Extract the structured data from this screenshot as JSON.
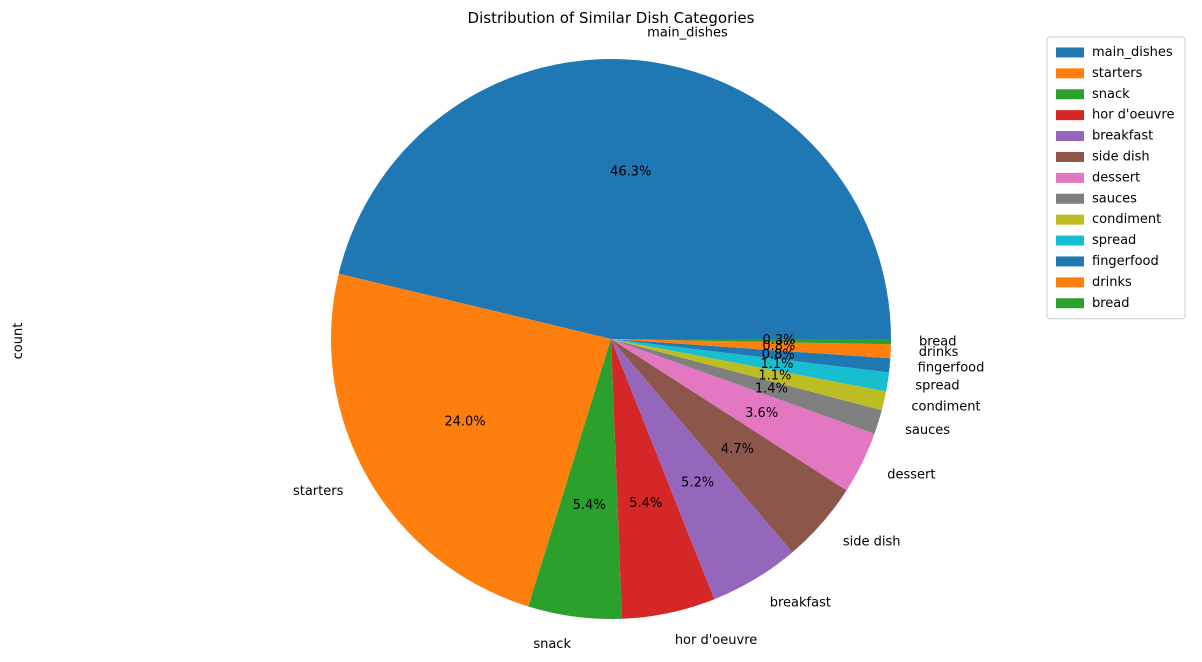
{
  "chart_data": {
    "type": "pie",
    "title": "Distribution of Similar Dish Categories",
    "ylabel": "count",
    "start_angle_deg": 0,
    "direction": "counterclockwise",
    "legend_position": "top-right",
    "slices": [
      {
        "label": "main_dishes",
        "percent": 46.3,
        "percent_label": "46.3%",
        "color": "#1f77b4"
      },
      {
        "label": "starters",
        "percent": 24.0,
        "percent_label": "24.0%",
        "color": "#ff7f0e"
      },
      {
        "label": "snack",
        "percent": 5.4,
        "percent_label": "5.4%",
        "color": "#2ca02c"
      },
      {
        "label": "hor d'oeuvre",
        "percent": 5.4,
        "percent_label": "5.4%",
        "color": "#d62728"
      },
      {
        "label": "breakfast",
        "percent": 5.2,
        "percent_label": "5.2%",
        "color": "#9467bd"
      },
      {
        "label": "side dish",
        "percent": 4.7,
        "percent_label": "4.7%",
        "color": "#8c564b"
      },
      {
        "label": "dessert",
        "percent": 3.6,
        "percent_label": "3.6%",
        "color": "#e377c2"
      },
      {
        "label": "sauces",
        "percent": 1.4,
        "percent_label": "1.4%",
        "color": "#7f7f7f"
      },
      {
        "label": "condiment",
        "percent": 1.1,
        "percent_label": "1.1%",
        "color": "#bcbd22"
      },
      {
        "label": "spread",
        "percent": 1.1,
        "percent_label": "1.1%",
        "color": "#17becf"
      },
      {
        "label": "fingerfood",
        "percent": 0.8,
        "percent_label": "0.8%",
        "color": "#1f77b4"
      },
      {
        "label": "drinks",
        "percent": 0.8,
        "percent_label": "0.8%",
        "color": "#ff7f0e"
      },
      {
        "label": "bread",
        "percent": 0.3,
        "percent_label": "0.3%",
        "color": "#2ca02c"
      }
    ]
  }
}
